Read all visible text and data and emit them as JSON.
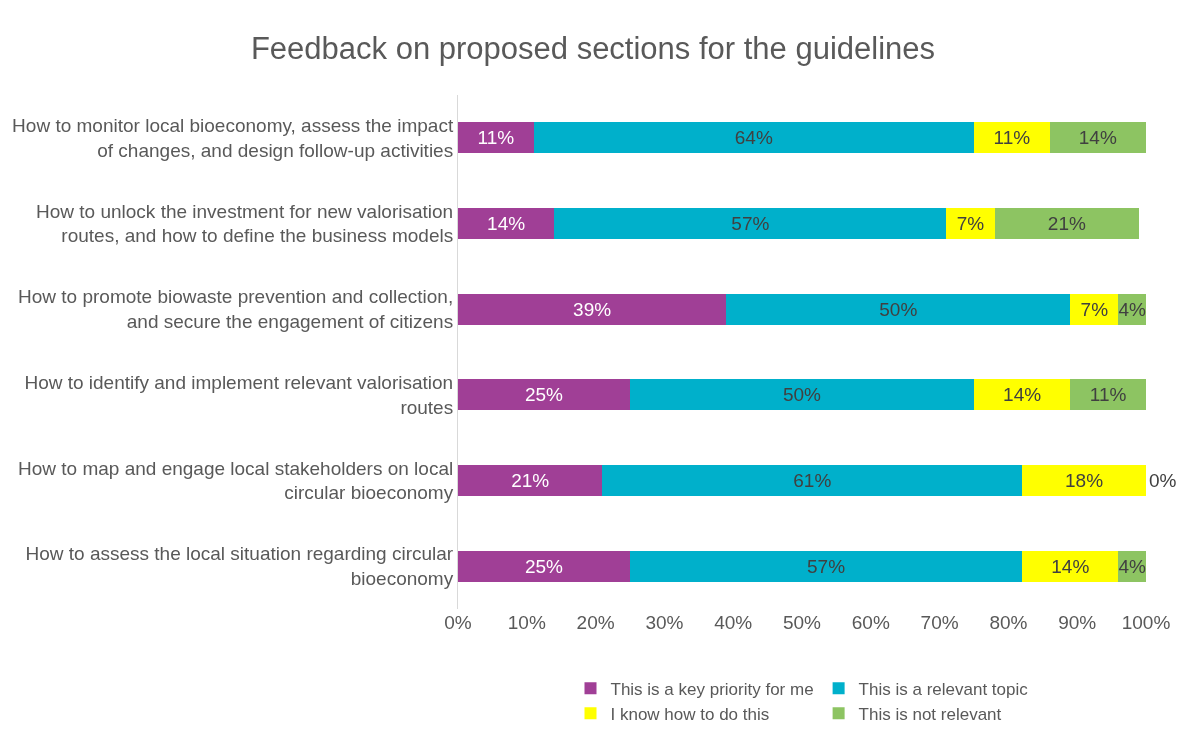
{
  "chart_data": {
    "type": "bar",
    "orientation": "horizontal",
    "stacked": true,
    "title": "Feedback on proposed sections for the guidelines",
    "categories": [
      "How to monitor local bioeconomy, assess the impact of changes, and design follow-up activities",
      "How to unlock the investment for new valorisation routes, and how to define the business models",
      "How to promote biowaste prevention and collection, and secure the engagement of citizens",
      "How to identify and implement relevant valorisation routes",
      "How to map and engage local stakeholders on local circular bioeconomy",
      "How to assess the local situation regarding circular bioeconomy"
    ],
    "series": [
      {
        "name": "This is a key priority for me",
        "color": "#a03f96",
        "values": [
          11,
          14,
          39,
          25,
          21,
          25
        ],
        "value_labels": [
          "11%",
          "14%",
          "39%",
          "25%",
          "21%",
          "25%"
        ]
      },
      {
        "name": "This is a relevant topic",
        "color": "#00b0cb",
        "values": [
          64,
          57,
          50,
          50,
          61,
          57
        ],
        "value_labels": [
          "64%",
          "57%",
          "50%",
          "50%",
          "61%",
          "57%"
        ]
      },
      {
        "name": "I know how to do this",
        "color": "#ffff00",
        "values": [
          11,
          7,
          7,
          14,
          18,
          14
        ],
        "value_labels": [
          "11%",
          "7%",
          "7%",
          "14%",
          "18%",
          "14%"
        ]
      },
      {
        "name": "This is not relevant",
        "color": "#8dc462",
        "values": [
          14,
          21,
          4,
          11,
          0,
          4
        ],
        "value_labels": [
          "14%",
          "21%",
          "4%",
          "11%",
          "0%",
          "4%"
        ]
      }
    ],
    "xlim": [
      0,
      100
    ],
    "xticks": [
      {
        "value": 0,
        "label": "0%"
      },
      {
        "value": 10,
        "label": "10%"
      },
      {
        "value": 20,
        "label": "20%"
      },
      {
        "value": 30,
        "label": "30%"
      },
      {
        "value": 40,
        "label": "40%"
      },
      {
        "value": 50,
        "label": "50%"
      },
      {
        "value": 60,
        "label": "60%"
      },
      {
        "value": 70,
        "label": "70%"
      },
      {
        "value": 80,
        "label": "80%"
      },
      {
        "value": 90,
        "label": "90%"
      },
      {
        "value": 100,
        "label": "100%"
      }
    ],
    "legend": "bottom"
  }
}
